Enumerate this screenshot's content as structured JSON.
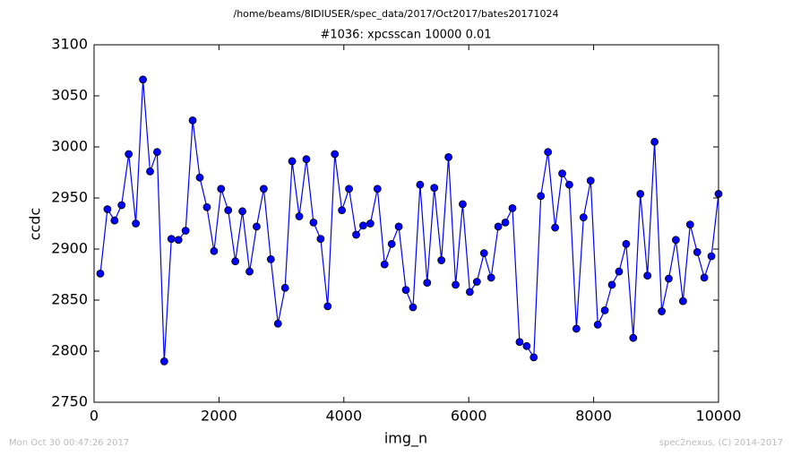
{
  "chart_data": {
    "type": "line",
    "suptitle": "/home/beams/8IDIUSER/spec_data/2017/Oct2017/bates20171024",
    "title": "#1036: xpcsscan 10000 0.01",
    "xlabel": "img_n",
    "ylabel": "ccdc",
    "footer_left": "Mon Oct 30 00:47:26 2017",
    "footer_right": "spec2nexus, (C) 2014-2017",
    "xlim": [
      0,
      10000
    ],
    "xticks": [
      0,
      2000,
      4000,
      6000,
      8000,
      10000
    ],
    "ylim": [
      2750,
      3100
    ],
    "yticks": [
      2750,
      2800,
      2850,
      2900,
      2950,
      3000,
      3050,
      3100
    ],
    "x": [
      100,
      214,
      328,
      441,
      555,
      669,
      783,
      897,
      1010,
      1124,
      1238,
      1352,
      1466,
      1579,
      1693,
      1807,
      1921,
      2034,
      2148,
      2262,
      2376,
      2490,
      2603,
      2717,
      2831,
      2945,
      3059,
      3172,
      3286,
      3400,
      3514,
      3628,
      3741,
      3855,
      3969,
      4083,
      4197,
      4310,
      4424,
      4538,
      4652,
      4766,
      4879,
      4993,
      5107,
      5221,
      5334,
      5448,
      5562,
      5676,
      5790,
      5903,
      6017,
      6131,
      6245,
      6359,
      6472,
      6586,
      6700,
      6814,
      6928,
      7041,
      7155,
      7269,
      7383,
      7497,
      7610,
      7724,
      7838,
      7952,
      8066,
      8179,
      8293,
      8407,
      8521,
      8634,
      8748,
      8862,
      8976,
      9090,
      9203,
      9317,
      9431,
      9545,
      9659,
      9772,
      9886,
      10000
    ],
    "series": [
      {
        "name": "ccdc",
        "color": "#0000ff",
        "marker_edge": "#000000",
        "values": [
          2876,
          2939,
          2928,
          2943,
          2993,
          2925,
          3066,
          2976,
          2995,
          2790,
          2910,
          2909,
          2918,
          3026,
          2970,
          2941,
          2898,
          2959,
          2938,
          2888,
          2937,
          2878,
          2922,
          2959,
          2890,
          2827,
          2862,
          2986,
          2932,
          2988,
          2926,
          2910,
          2844,
          2993,
          2938,
          2959,
          2914,
          2923,
          2925,
          2959,
          2885,
          2905,
          2922,
          2860,
          2843,
          2963,
          2867,
          2960,
          2889,
          2990,
          2865,
          2944,
          2858,
          2868,
          2896,
          2872,
          2922,
          2926,
          2940,
          2809,
          2805,
          2794,
          2952,
          2995,
          2921,
          2974,
          2963,
          2822,
          2931,
          2967,
          2826,
          2840,
          2865,
          2878,
          2905,
          2813,
          2954,
          2874,
          3005,
          2839,
          2871,
          2909,
          2849,
          2924,
          2897,
          2872,
          2893,
          2954
        ]
      }
    ]
  }
}
